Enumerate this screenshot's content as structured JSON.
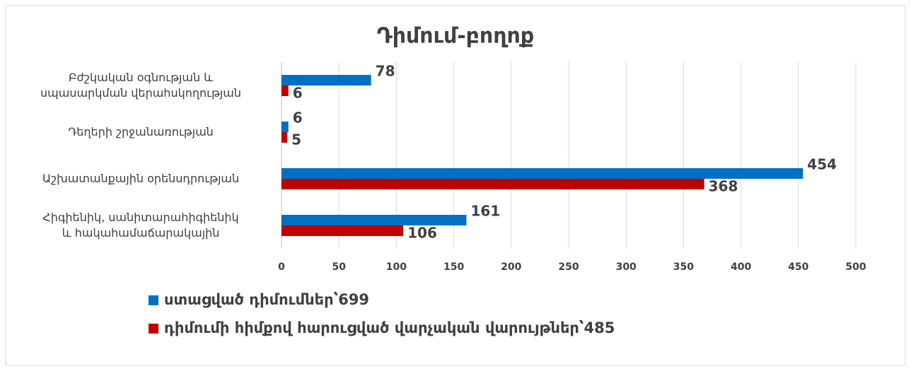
{
  "chart_data": {
    "type": "barh",
    "title": "Դիմում-բողոք",
    "categories": [
      "Բժշկական օգնության և\nսպասարկման վերահսկողության",
      "Դեղերի շրջանառության",
      "Աշխատանքային օրենսդրության",
      "Հիգիենիկ, սանիտարահիգիենիկ\nև հակահամաճարակային"
    ],
    "series": [
      {
        "name": "ստացված դիմումներ՝699",
        "color": "#0070c0",
        "values": [
          78,
          6,
          454,
          161
        ]
      },
      {
        "name": "դիմումի հիմքով հարուցված վարչական վարույթներ՝485",
        "color": "#c00000",
        "values": [
          6,
          5,
          368,
          106
        ]
      }
    ],
    "xlim": [
      0,
      500
    ],
    "xticks": [
      0,
      50,
      100,
      150,
      200,
      250,
      300,
      350,
      400,
      450,
      500
    ],
    "grid": true,
    "legend": "bottom"
  }
}
